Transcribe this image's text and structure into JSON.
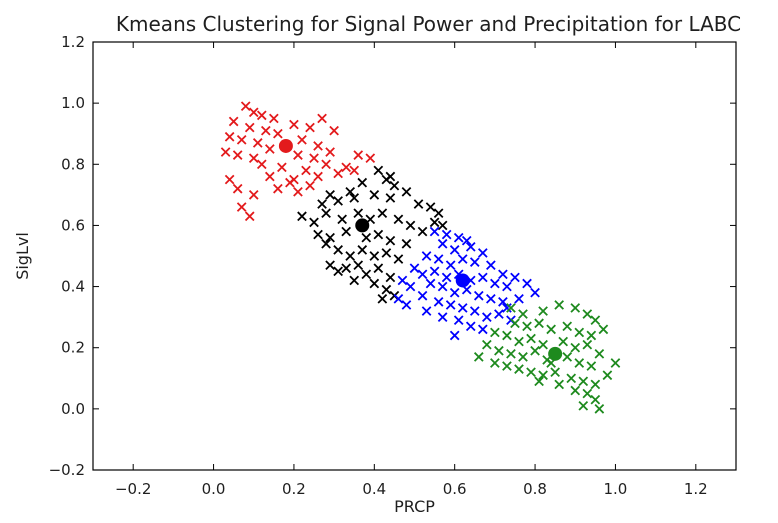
{
  "chart_data": {
    "type": "scatter",
    "title": "Kmeans Clustering for Signal Power and Precipitation for LABC",
    "xlabel": "PRCP",
    "ylabel": "SigLvl",
    "xlim": [
      -0.3,
      1.3
    ],
    "ylim": [
      -0.2,
      1.2
    ],
    "xticks": [
      -0.2,
      0.0,
      0.2,
      0.4,
      0.6,
      0.8,
      1.0,
      1.2
    ],
    "xtick_labels": [
      "−0.2",
      "0.0",
      "0.2",
      "0.4",
      "0.6",
      "0.8",
      "1.0",
      "1.2"
    ],
    "yticks": [
      -0.2,
      0.0,
      0.2,
      0.4,
      0.6,
      0.8,
      1.0,
      1.2
    ],
    "ytick_labels": [
      "−0.2",
      "0.0",
      "0.2",
      "0.4",
      "0.6",
      "0.8",
      "1.0",
      "1.2"
    ],
    "grid": false,
    "legend": "none",
    "marker": "x",
    "series": [
      {
        "color": "#e31a1c",
        "centroid": [
          0.18,
          0.86
        ],
        "points": [
          [
            0.08,
            0.99
          ],
          [
            0.1,
            0.97
          ],
          [
            0.12,
            0.96
          ],
          [
            0.15,
            0.95
          ],
          [
            0.05,
            0.94
          ],
          [
            0.09,
            0.92
          ],
          [
            0.13,
            0.91
          ],
          [
            0.2,
            0.93
          ],
          [
            0.24,
            0.92
          ],
          [
            0.27,
            0.95
          ],
          [
            0.04,
            0.89
          ],
          [
            0.07,
            0.88
          ],
          [
            0.11,
            0.87
          ],
          [
            0.16,
            0.9
          ],
          [
            0.22,
            0.88
          ],
          [
            0.26,
            0.86
          ],
          [
            0.3,
            0.91
          ],
          [
            0.03,
            0.84
          ],
          [
            0.06,
            0.83
          ],
          [
            0.1,
            0.82
          ],
          [
            0.14,
            0.85
          ],
          [
            0.21,
            0.83
          ],
          [
            0.25,
            0.82
          ],
          [
            0.29,
            0.84
          ],
          [
            0.12,
            0.8
          ],
          [
            0.17,
            0.79
          ],
          [
            0.23,
            0.78
          ],
          [
            0.28,
            0.8
          ],
          [
            0.33,
            0.79
          ],
          [
            0.36,
            0.83
          ],
          [
            0.39,
            0.82
          ],
          [
            0.14,
            0.76
          ],
          [
            0.2,
            0.75
          ],
          [
            0.26,
            0.76
          ],
          [
            0.31,
            0.77
          ],
          [
            0.35,
            0.78
          ],
          [
            0.04,
            0.75
          ],
          [
            0.06,
            0.72
          ],
          [
            0.1,
            0.7
          ],
          [
            0.16,
            0.72
          ],
          [
            0.21,
            0.71
          ],
          [
            0.07,
            0.66
          ],
          [
            0.09,
            0.63
          ],
          [
            0.19,
            0.74
          ],
          [
            0.24,
            0.73
          ]
        ]
      },
      {
        "color": "#000000",
        "centroid": [
          0.37,
          0.6
        ],
        "points": [
          [
            0.41,
            0.78
          ],
          [
            0.44,
            0.76
          ],
          [
            0.45,
            0.73
          ],
          [
            0.43,
            0.75
          ],
          [
            0.37,
            0.74
          ],
          [
            0.34,
            0.71
          ],
          [
            0.29,
            0.7
          ],
          [
            0.27,
            0.67
          ],
          [
            0.31,
            0.68
          ],
          [
            0.35,
            0.69
          ],
          [
            0.4,
            0.7
          ],
          [
            0.44,
            0.69
          ],
          [
            0.48,
            0.71
          ],
          [
            0.51,
            0.67
          ],
          [
            0.54,
            0.66
          ],
          [
            0.56,
            0.64
          ],
          [
            0.55,
            0.61
          ],
          [
            0.57,
            0.6
          ],
          [
            0.22,
            0.63
          ],
          [
            0.25,
            0.61
          ],
          [
            0.28,
            0.64
          ],
          [
            0.32,
            0.62
          ],
          [
            0.36,
            0.64
          ],
          [
            0.39,
            0.62
          ],
          [
            0.42,
            0.64
          ],
          [
            0.46,
            0.62
          ],
          [
            0.49,
            0.6
          ],
          [
            0.52,
            0.58
          ],
          [
            0.26,
            0.57
          ],
          [
            0.29,
            0.56
          ],
          [
            0.33,
            0.58
          ],
          [
            0.38,
            0.56
          ],
          [
            0.41,
            0.57
          ],
          [
            0.44,
            0.55
          ],
          [
            0.48,
            0.54
          ],
          [
            0.31,
            0.52
          ],
          [
            0.34,
            0.5
          ],
          [
            0.37,
            0.52
          ],
          [
            0.4,
            0.5
          ],
          [
            0.43,
            0.51
          ],
          [
            0.46,
            0.49
          ],
          [
            0.29,
            0.47
          ],
          [
            0.31,
            0.45
          ],
          [
            0.33,
            0.46
          ],
          [
            0.36,
            0.47
          ],
          [
            0.38,
            0.44
          ],
          [
            0.41,
            0.46
          ],
          [
            0.44,
            0.43
          ],
          [
            0.4,
            0.41
          ],
          [
            0.43,
            0.39
          ],
          [
            0.45,
            0.37
          ],
          [
            0.42,
            0.36
          ],
          [
            0.35,
            0.42
          ],
          [
            0.28,
            0.54
          ]
        ]
      },
      {
        "color": "#0000ff",
        "centroid": [
          0.62,
          0.42
        ],
        "points": [
          [
            0.55,
            0.58
          ],
          [
            0.58,
            0.57
          ],
          [
            0.61,
            0.56
          ],
          [
            0.63,
            0.55
          ],
          [
            0.57,
            0.54
          ],
          [
            0.6,
            0.52
          ],
          [
            0.64,
            0.53
          ],
          [
            0.67,
            0.51
          ],
          [
            0.53,
            0.5
          ],
          [
            0.56,
            0.49
          ],
          [
            0.59,
            0.47
          ],
          [
            0.62,
            0.49
          ],
          [
            0.65,
            0.48
          ],
          [
            0.69,
            0.47
          ],
          [
            0.72,
            0.44
          ],
          [
            0.75,
            0.43
          ],
          [
            0.5,
            0.46
          ],
          [
            0.52,
            0.44
          ],
          [
            0.55,
            0.45
          ],
          [
            0.58,
            0.43
          ],
          [
            0.61,
            0.44
          ],
          [
            0.64,
            0.42
          ],
          [
            0.67,
            0.43
          ],
          [
            0.7,
            0.41
          ],
          [
            0.73,
            0.4
          ],
          [
            0.78,
            0.41
          ],
          [
            0.8,
            0.38
          ],
          [
            0.47,
            0.42
          ],
          [
            0.49,
            0.4
          ],
          [
            0.54,
            0.41
          ],
          [
            0.57,
            0.4
          ],
          [
            0.6,
            0.38
          ],
          [
            0.63,
            0.39
          ],
          [
            0.66,
            0.37
          ],
          [
            0.69,
            0.36
          ],
          [
            0.72,
            0.35
          ],
          [
            0.76,
            0.36
          ],
          [
            0.52,
            0.37
          ],
          [
            0.56,
            0.35
          ],
          [
            0.59,
            0.34
          ],
          [
            0.62,
            0.33
          ],
          [
            0.65,
            0.32
          ],
          [
            0.68,
            0.3
          ],
          [
            0.71,
            0.31
          ],
          [
            0.74,
            0.29
          ],
          [
            0.46,
            0.36
          ],
          [
            0.48,
            0.34
          ],
          [
            0.53,
            0.32
          ],
          [
            0.57,
            0.3
          ],
          [
            0.61,
            0.29
          ],
          [
            0.64,
            0.27
          ],
          [
            0.67,
            0.26
          ],
          [
            0.6,
            0.24
          ],
          [
            0.73,
            0.33
          ]
        ]
      },
      {
        "color": "#1e8a1e",
        "centroid": [
          0.85,
          0.18
        ],
        "points": [
          [
            0.74,
            0.33
          ],
          [
            0.77,
            0.31
          ],
          [
            0.82,
            0.32
          ],
          [
            0.86,
            0.34
          ],
          [
            0.9,
            0.33
          ],
          [
            0.93,
            0.31
          ],
          [
            0.95,
            0.29
          ],
          [
            0.75,
            0.28
          ],
          [
            0.78,
            0.27
          ],
          [
            0.81,
            0.28
          ],
          [
            0.84,
            0.26
          ],
          [
            0.88,
            0.27
          ],
          [
            0.91,
            0.25
          ],
          [
            0.94,
            0.24
          ],
          [
            0.97,
            0.26
          ],
          [
            0.7,
            0.25
          ],
          [
            0.73,
            0.24
          ],
          [
            0.76,
            0.22
          ],
          [
            0.79,
            0.23
          ],
          [
            0.82,
            0.21
          ],
          [
            0.87,
            0.22
          ],
          [
            0.9,
            0.2
          ],
          [
            0.93,
            0.21
          ],
          [
            0.96,
            0.18
          ],
          [
            0.68,
            0.21
          ],
          [
            0.71,
            0.19
          ],
          [
            0.74,
            0.18
          ],
          [
            0.77,
            0.17
          ],
          [
            0.8,
            0.19
          ],
          [
            0.83,
            0.16
          ],
          [
            0.88,
            0.17
          ],
          [
            0.91,
            0.15
          ],
          [
            0.94,
            0.14
          ],
          [
            0.66,
            0.17
          ],
          [
            0.7,
            0.15
          ],
          [
            0.73,
            0.14
          ],
          [
            0.76,
            0.13
          ],
          [
            0.79,
            0.12
          ],
          [
            0.82,
            0.11
          ],
          [
            0.85,
            0.12
          ],
          [
            0.89,
            0.1
          ],
          [
            0.92,
            0.09
          ],
          [
            0.86,
            0.08
          ],
          [
            0.9,
            0.06
          ],
          [
            0.93,
            0.05
          ],
          [
            0.95,
            0.03
          ],
          [
            0.92,
            0.01
          ],
          [
            0.96,
            0.0
          ],
          [
            1.0,
            0.15
          ],
          [
            0.98,
            0.11
          ],
          [
            0.95,
            0.08
          ],
          [
            0.84,
            0.15
          ],
          [
            0.81,
            0.09
          ]
        ]
      }
    ]
  }
}
